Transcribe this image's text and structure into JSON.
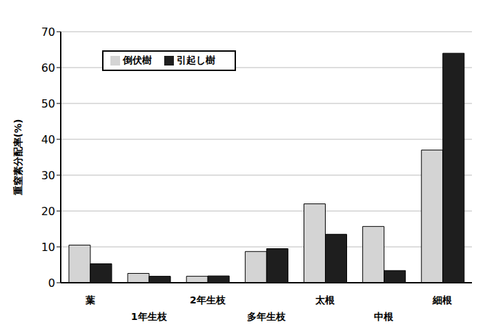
{
  "chart_data": {
    "type": "bar",
    "y_label": "重窒素分配率(%)",
    "categories": [
      "葉",
      "1年生枝",
      "2年生枝",
      "多年生枝",
      "太根",
      "中根",
      "細根"
    ],
    "series": [
      {
        "name": "倒伏樹",
        "color": "#d4d4d4",
        "values": [
          10.5,
          2.6,
          1.8,
          8.7,
          22.0,
          15.7,
          37.0
        ]
      },
      {
        "name": "引起し樹",
        "color": "#1e1e1e",
        "values": [
          5.3,
          1.8,
          1.9,
          9.5,
          13.5,
          3.4,
          64.0
        ]
      }
    ],
    "ylim": [
      0,
      70
    ],
    "yticks": [
      0,
      10,
      20,
      30,
      40,
      50,
      60,
      70
    ],
    "grid": true,
    "legend": "upper left"
  }
}
